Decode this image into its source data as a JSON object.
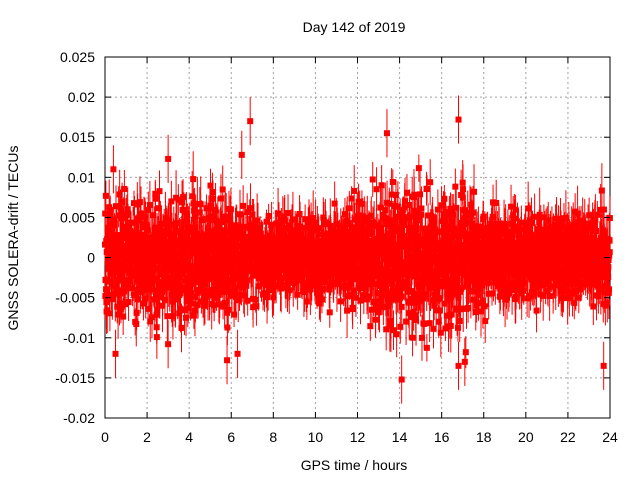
{
  "chart_data": {
    "type": "scatter",
    "title": "Day 142 of 2019",
    "xlabel": "GPS time / hours",
    "ylabel": "GNSS SOLERA-drift / TECUs",
    "xlim": [
      0,
      24
    ],
    "ylim": [
      -0.02,
      0.025
    ],
    "grid": true,
    "legend": "none",
    "x_ticks": [
      0,
      2,
      4,
      6,
      8,
      10,
      12,
      14,
      16,
      18,
      20,
      22,
      24
    ],
    "x_tick_labels": [
      "0",
      "2",
      "4",
      "6",
      "8",
      "10",
      "12",
      "14",
      "16",
      "18",
      "20",
      "22",
      "24"
    ],
    "y_ticks": [
      -0.02,
      -0.015,
      -0.01,
      -0.005,
      0,
      0.005,
      0.01,
      0.015,
      0.02,
      0.025
    ],
    "y_tick_labels": [
      "-0.02",
      "-0.015",
      "-0.01",
      "-0.005",
      "0",
      "0.005",
      "0.01",
      "0.015",
      "0.02",
      "0.025"
    ],
    "series": [
      {
        "name": "SOLERA drift",
        "color": "#ff0000",
        "marker": "square",
        "error_bars": true,
        "sample_interval_hours": 0.0083,
        "typical_value_range": [
          -0.009,
          0.009
        ],
        "typical_error": 0.0025,
        "notable_points": [
          {
            "x": 6.9,
            "y": 0.017
          },
          {
            "x": 16.8,
            "y": 0.0172
          },
          {
            "x": 13.4,
            "y": 0.0155
          },
          {
            "x": 3.0,
            "y": 0.0123
          },
          {
            "x": 6.5,
            "y": 0.0128
          },
          {
            "x": 0.4,
            "y": 0.011
          },
          {
            "x": 0.5,
            "y": -0.012
          },
          {
            "x": 6.3,
            "y": -0.012
          },
          {
            "x": 14.1,
            "y": -0.0152
          },
          {
            "x": 16.8,
            "y": -0.0135
          },
          {
            "x": 17.1,
            "y": -0.013
          },
          {
            "x": 23.7,
            "y": -0.0135
          },
          {
            "x": 5.8,
            "y": -0.0128
          },
          {
            "x": 3.0,
            "y": -0.0108
          }
        ]
      }
    ]
  }
}
